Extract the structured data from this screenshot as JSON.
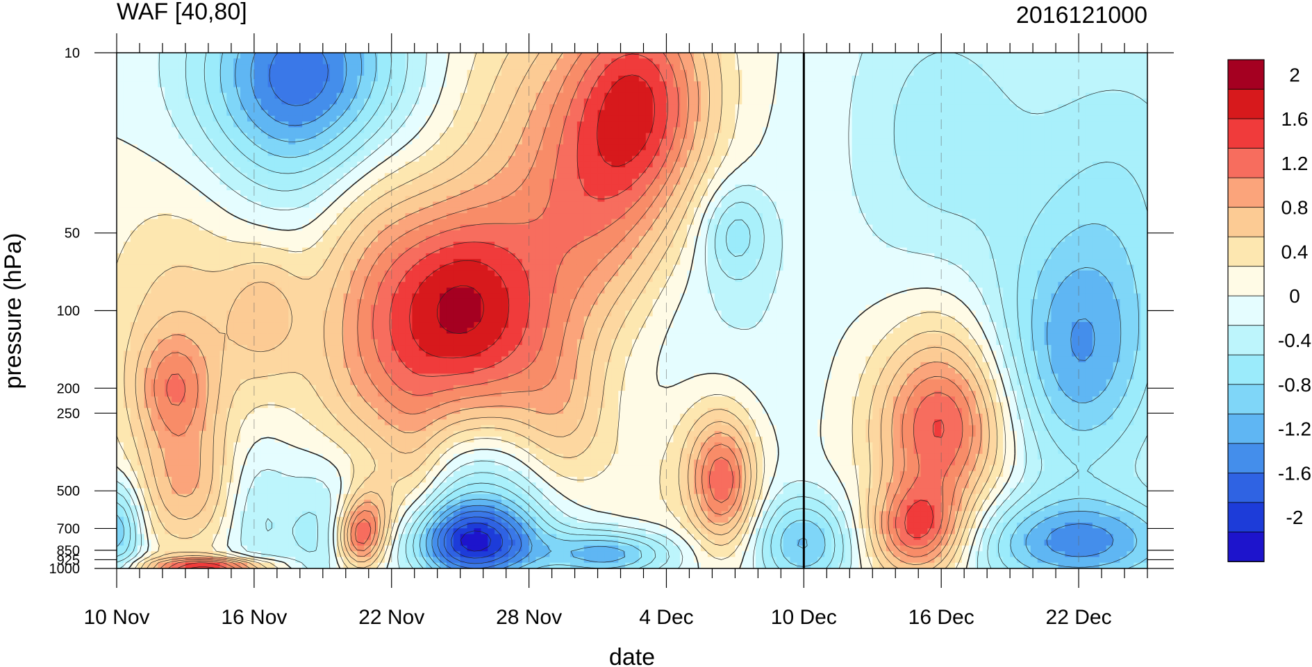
{
  "chart_data": {
    "type": "heatmap",
    "title_left": "WAF [40,80]",
    "title_right": "2016121000",
    "xlabel": "date",
    "ylabel": "pressure (hPa)",
    "x_tick_labels": [
      "10 Nov",
      "16 Nov",
      "22 Nov",
      "28 Nov",
      "4 Dec",
      "10 Dec",
      "16 Dec",
      "22 Dec"
    ],
    "x_tick_days": [
      0,
      6,
      12,
      18,
      24,
      30,
      36,
      42
    ],
    "x_range_days": [
      0,
      45
    ],
    "y_scale": "log",
    "y_range": [
      1000,
      10
    ],
    "y_ticks": [
      10,
      50,
      100,
      200,
      250,
      500,
      700,
      850,
      925,
      1000
    ],
    "reference_line_day": 30,
    "colorbar": {
      "labels": [
        "2",
        "1.6",
        "1.2",
        "0.8",
        "0.4",
        "0",
        "-0.4",
        "-0.8",
        "-1.2",
        "-1.6",
        "-2"
      ],
      "colors": [
        "#a50021",
        "#d7191c",
        "#f03b3b",
        "#f76d5e",
        "#fba47b",
        "#fccb94",
        "#fde7b0",
        "#fffbe6",
        "#e5fdff",
        "#bdf5fc",
        "#9bebfb",
        "#7fd6f8",
        "#5fb6f3",
        "#448eeb",
        "#2f63e3",
        "#1d3cd9",
        "#1d14cc"
      ]
    },
    "levels": [
      -2.2,
      -2.0,
      -1.8,
      -1.6,
      -1.4,
      -1.2,
      -1.0,
      -0.8,
      -0.6,
      -0.4,
      -0.2,
      0,
      0.2,
      0.4,
      0.6,
      0.8,
      1.0,
      1.2,
      1.4,
      1.6,
      1.8,
      2.0
    ],
    "level_colors": [
      "#1d14cc",
      "#1d3cd9",
      "#2f63e3",
      "#3a78e8",
      "#448eeb",
      "#5fb6f3",
      "#7fd6f8",
      "#9bebfb",
      "#a9f0fb",
      "#bdf5fc",
      "#e5fdff",
      "#fffbe6",
      "#fde7b0",
      "#fdd7a0",
      "#fccb94",
      "#fba47b",
      "#f88c68",
      "#f76d5e",
      "#f03b3b",
      "#d7191c",
      "#a50021"
    ],
    "anomalies": [
      {
        "day": 3,
        "p": 110,
        "value": 0.5,
        "sd": 2.5,
        "sp": 0.9
      },
      {
        "day": 6.5,
        "p": 100,
        "value": 0.55,
        "sd": 1.2,
        "sp": 0.4
      },
      {
        "day": 2.5,
        "p": 200,
        "value": 0.8,
        "sd": 1.2,
        "sp": 0.35
      },
      {
        "day": 3,
        "p": 480,
        "value": 0.7,
        "sd": 1.5,
        "sp": 0.4
      },
      {
        "day": 8,
        "p": 12,
        "value": -1.0,
        "sd": 3.0,
        "sp": 0.6
      },
      {
        "day": 8.5,
        "p": 14,
        "value": -0.6,
        "sd": 3.5,
        "sp": 0.9
      },
      {
        "day": 11,
        "p": 70,
        "value": 0.6,
        "sd": 2.0,
        "sp": 1.0
      },
      {
        "day": 11.5,
        "p": 200,
        "value": 0.3,
        "sd": 2.5,
        "sp": 0.6
      },
      {
        "day": 11,
        "p": 650,
        "value": 0.9,
        "sd": 0.8,
        "sp": 0.25
      },
      {
        "day": 10.5,
        "p": 780,
        "value": 1.0,
        "sd": 0.7,
        "sp": 0.2
      },
      {
        "day": 15,
        "p": 80,
        "value": 1.2,
        "sd": 2.5,
        "sp": 0.6
      },
      {
        "day": 16,
        "p": 170,
        "value": 0.8,
        "sd": 3.0,
        "sp": 0.6
      },
      {
        "day": 19,
        "p": 22,
        "value": 0.6,
        "sd": 3.5,
        "sp": 1.0
      },
      {
        "day": 23,
        "p": 15,
        "value": 1.3,
        "sd": 2.2,
        "sp": 0.7
      },
      {
        "day": 21,
        "p": 50,
        "value": 0.7,
        "sd": 2.5,
        "sp": 0.8
      },
      {
        "day": 19,
        "p": 120,
        "value": 0.05,
        "sd": 1.5,
        "sp": 0.6
      },
      {
        "day": 19.5,
        "p": 300,
        "value": 0.5,
        "sd": 1.5,
        "sp": 0.5
      },
      {
        "day": 15.5,
        "p": 800,
        "value": -1.7,
        "sd": 2.0,
        "sp": 0.25
      },
      {
        "day": 16,
        "p": 500,
        "value": -0.7,
        "sd": 2.5,
        "sp": 0.5
      },
      {
        "day": 21.5,
        "p": 880,
        "value": -1.1,
        "sd": 2.0,
        "sp": 0.15
      },
      {
        "day": 23,
        "p": 500,
        "value": 0.2,
        "sd": 1.5,
        "sp": 0.5
      },
      {
        "day": 26.5,
        "p": 480,
        "value": 1.1,
        "sd": 1.0,
        "sp": 0.4
      },
      {
        "day": 26,
        "p": 350,
        "value": 0.5,
        "sd": 1.5,
        "sp": 0.5
      },
      {
        "day": 25,
        "p": 120,
        "value": -0.3,
        "sd": 4.0,
        "sp": 1.2
      },
      {
        "day": 27,
        "p": 50,
        "value": -0.6,
        "sd": 1.0,
        "sp": 0.3
      },
      {
        "day": 30,
        "p": 800,
        "value": -1.0,
        "sd": 1.5,
        "sp": 0.3
      },
      {
        "day": 31,
        "p": 100,
        "value": 0.05,
        "sd": 1.5,
        "sp": 1.5
      },
      {
        "day": 36,
        "p": 300,
        "value": 1.2,
        "sd": 2.0,
        "sp": 0.5
      },
      {
        "day": 35,
        "p": 720,
        "value": 1.4,
        "sd": 1.5,
        "sp": 0.3
      },
      {
        "day": 36,
        "p": 170,
        "value": 0.4,
        "sd": 2.0,
        "sp": 0.6
      },
      {
        "day": 42,
        "p": 150,
        "value": -1.1,
        "sd": 2.5,
        "sp": 0.8
      },
      {
        "day": 42,
        "p": 800,
        "value": -1.2,
        "sd": 3.5,
        "sp": 0.3
      },
      {
        "day": 36,
        "p": 20,
        "value": -0.5,
        "sd": 3.0,
        "sp": 1.0
      },
      {
        "day": 44,
        "p": 30,
        "value": -0.5,
        "sd": 3.0,
        "sp": 1.0
      },
      {
        "day": 4,
        "p": 990,
        "value": 1.6,
        "sd": 2.0,
        "sp": 0.06
      },
      {
        "day": 0,
        "p": 700,
        "value": -1.0,
        "sd": 0.8,
        "sp": 0.3
      },
      {
        "day": 9,
        "p": 700,
        "value": -0.5,
        "sd": 1.5,
        "sp": 0.5
      },
      {
        "day": 13,
        "p": 500,
        "value": 0.4,
        "sd": 1.0,
        "sp": 0.6
      },
      {
        "day": 6,
        "p": 600,
        "value": -0.4,
        "sd": 1.0,
        "sp": 0.5
      }
    ]
  }
}
